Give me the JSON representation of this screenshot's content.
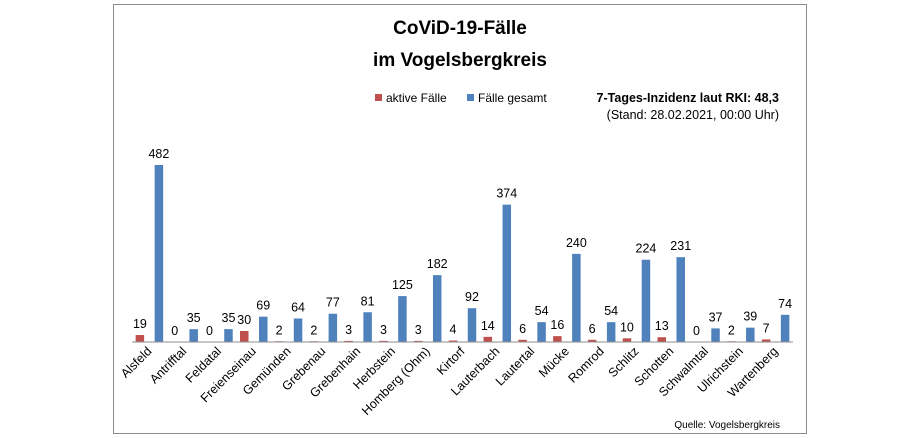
{
  "chart_data": {
    "type": "bar",
    "title_line1": "CoViD-19-Fälle",
    "title_line2": "im Vogelsbergkreis",
    "categories": [
      "Alsfeld",
      "Antrifftal",
      "Feldatal",
      "Freienseinau",
      "Gemünden",
      "Grebenau",
      "Grebenhain",
      "Herbstein",
      "Homberg (Ohm)",
      "Kirtorf",
      "Lauterbach",
      "Lautertal",
      "Mücke",
      "Romrod",
      "Schlitz",
      "Schotten",
      "Schwalmtal",
      "Ulrichstein",
      "Wartenberg"
    ],
    "series": [
      {
        "name": "aktive Fälle",
        "color": "#c0504d",
        "values": [
          19,
          0,
          0,
          30,
          2,
          2,
          3,
          3,
          3,
          4,
          14,
          6,
          16,
          6,
          10,
          13,
          0,
          2,
          7
        ]
      },
      {
        "name": "Fälle gesamt",
        "color": "#4f81bd",
        "values": [
          482,
          35,
          35,
          69,
          64,
          77,
          81,
          125,
          182,
          92,
          374,
          54,
          240,
          54,
          224,
          231,
          37,
          39,
          74
        ]
      }
    ],
    "ylim": [
      0,
      500
    ],
    "legend_position": "top-center",
    "grid": false
  },
  "incidence": {
    "line1": "7-Tages-Inzidenz laut RKI: 48,3",
    "line2": "(Stand: 28.02.2021, 00:00 Uhr)"
  },
  "source": "Quelle: Vogelsbergkreis"
}
